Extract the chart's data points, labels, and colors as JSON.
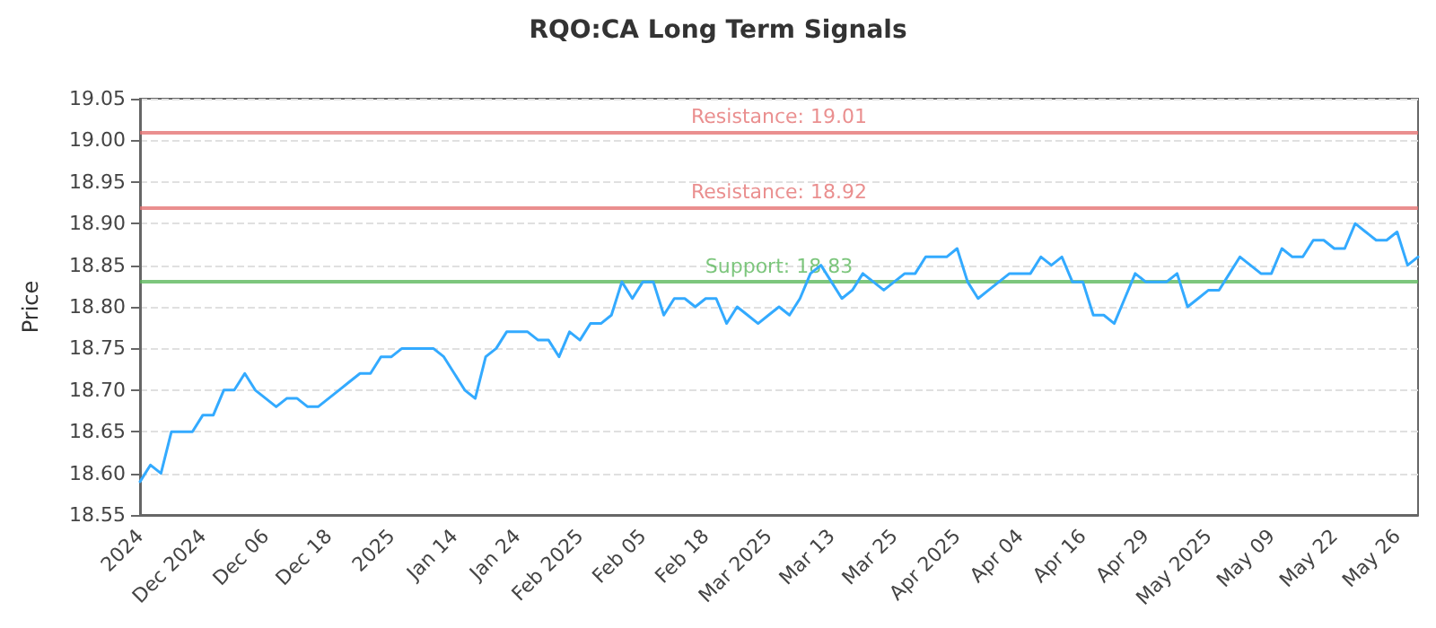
{
  "chart_data": {
    "type": "line",
    "title": "RQO:CA Long Term Signals",
    "ylabel": "Price",
    "categories": [
      "2024",
      null,
      null,
      null,
      null,
      null,
      "Dec 2024",
      null,
      null,
      null,
      null,
      null,
      "Dec 06",
      null,
      null,
      null,
      null,
      null,
      "Dec 18",
      null,
      null,
      null,
      null,
      null,
      "2025",
      null,
      null,
      null,
      null,
      null,
      "Jan 14",
      null,
      null,
      null,
      null,
      null,
      "Jan 24",
      null,
      null,
      null,
      null,
      null,
      "Feb 2025",
      null,
      null,
      null,
      null,
      null,
      "Feb 05",
      null,
      null,
      null,
      null,
      null,
      "Feb 18",
      null,
      null,
      null,
      null,
      null,
      "Mar 2025",
      null,
      null,
      null,
      null,
      null,
      "Mar 13",
      null,
      null,
      null,
      null,
      null,
      "Mar 25",
      null,
      null,
      null,
      null,
      null,
      "Apr 2025",
      null,
      null,
      null,
      null,
      null,
      "Apr 04",
      null,
      null,
      null,
      null,
      null,
      "Apr 16",
      null,
      null,
      null,
      null,
      null,
      "Apr 29",
      null,
      null,
      null,
      null,
      null,
      "May 2025",
      null,
      null,
      null,
      null,
      null,
      "May 09",
      null,
      null,
      null,
      null,
      null,
      "May 22",
      null,
      null,
      null,
      null,
      null,
      "May 26",
      null,
      null
    ],
    "series": [
      {
        "color": "#33aaff",
        "values": [
          18.59,
          18.61,
          18.6,
          18.65,
          18.65,
          18.65,
          18.67,
          18.67,
          18.7,
          18.7,
          18.72,
          18.7,
          18.69,
          18.68,
          18.69,
          18.69,
          18.68,
          18.68,
          18.69,
          18.7,
          18.71,
          18.72,
          18.72,
          18.74,
          18.74,
          18.75,
          18.75,
          18.75,
          18.75,
          18.74,
          18.72,
          18.7,
          18.69,
          18.74,
          18.75,
          18.77,
          18.77,
          18.77,
          18.76,
          18.76,
          18.74,
          18.77,
          18.76,
          18.78,
          18.78,
          18.79,
          18.83,
          18.81,
          18.83,
          18.83,
          18.79,
          18.81,
          18.81,
          18.8,
          18.81,
          18.81,
          18.78,
          18.8,
          18.79,
          18.78,
          18.79,
          18.8,
          18.79,
          18.81,
          18.84,
          18.85,
          18.83,
          18.81,
          18.82,
          18.84,
          18.83,
          18.82,
          18.83,
          18.84,
          18.84,
          18.86,
          18.86,
          18.86,
          18.87,
          18.83,
          18.81,
          18.82,
          18.83,
          18.84,
          18.84,
          18.84,
          18.86,
          18.85,
          18.86,
          18.83,
          18.83,
          18.79,
          18.79,
          18.78,
          18.81,
          18.84,
          18.83,
          18.83,
          18.83,
          18.84,
          18.8,
          18.81,
          18.82,
          18.82,
          18.84,
          18.86,
          18.85,
          18.84,
          18.84,
          18.87,
          18.86,
          18.86,
          18.88,
          18.88,
          18.87,
          18.87,
          18.9,
          18.89,
          18.88,
          18.88,
          18.89,
          18.85,
          18.86
        ]
      }
    ],
    "ylim": [
      18.55,
      19.05
    ],
    "yticks": [
      {
        "value": 18.55,
        "label": "18.55"
      },
      {
        "value": 18.6,
        "label": "18.60"
      },
      {
        "value": 18.65,
        "label": "18.65"
      },
      {
        "value": 18.7,
        "label": "18.70"
      },
      {
        "value": 18.75,
        "label": "18.75"
      },
      {
        "value": 18.8,
        "label": "18.80"
      },
      {
        "value": 18.85,
        "label": "18.85"
      },
      {
        "value": 18.9,
        "label": "18.90"
      },
      {
        "value": 18.95,
        "label": "18.95"
      },
      {
        "value": 19.0,
        "label": "19.00"
      },
      {
        "value": 19.05,
        "label": "19.05"
      }
    ],
    "ref_lines": [
      {
        "axis": "y",
        "value": 19.01,
        "label": "Resistance: 19.01",
        "color": "#e57373"
      },
      {
        "axis": "y",
        "value": 18.92,
        "label": "Resistance: 18.92",
        "color": "#e57373"
      },
      {
        "axis": "y",
        "value": 18.83,
        "label": "Support: 18.83",
        "color": "#5cb85c"
      }
    ],
    "grid": "y",
    "marker": "none",
    "line_style": "solid"
  }
}
